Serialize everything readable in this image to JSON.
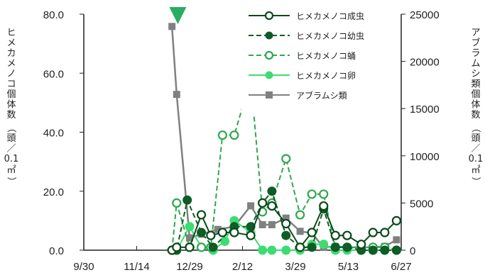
{
  "chart_data": {
    "type": "line",
    "x_ticks": [
      "9/30",
      "11/14",
      "12/29",
      "2/12",
      "3/29",
      "5/13",
      "6/27"
    ],
    "y_left": {
      "label": [
        "ヒメカメノコ個体数",
        "（頭／",
        "0.1",
        "㎡",
        "）"
      ],
      "ticks": [
        "0.0",
        "20.0",
        "40.0",
        "60.0",
        "80.0"
      ],
      "range": [
        0,
        80
      ]
    },
    "y_right": {
      "label": [
        "アブラムシ類個体数",
        "（頭／",
        "0.1",
        "㎡",
        "）"
      ],
      "ticks": [
        "0",
        "5000",
        "10000",
        "15000",
        "20000",
        "25000"
      ],
      "range": [
        0,
        25000
      ]
    },
    "x_range_days_from_9_30": [
      0,
      270
    ],
    "series": [
      {
        "name": "ヒメカメノコ成虫",
        "axis": "left",
        "color": "#0b4a1a",
        "style": "solid",
        "marker": "hollow-circle",
        "points": [
          [
            75,
            0.0
          ],
          [
            79,
            1.0
          ],
          [
            90,
            1.0
          ],
          [
            100,
            12.0
          ],
          [
            108,
            5.0
          ],
          [
            118,
            6.0
          ],
          [
            128,
            6.0
          ],
          [
            142,
            5.0
          ],
          [
            152,
            16.0
          ],
          [
            160,
            15.0
          ],
          [
            172,
            9.0
          ],
          [
            184,
            1.0
          ],
          [
            194,
            6.0
          ],
          [
            204,
            15.0
          ],
          [
            214,
            5.0
          ],
          [
            224,
            5.0
          ],
          [
            236,
            2.0
          ],
          [
            246,
            6.0
          ],
          [
            256,
            6.0
          ],
          [
            266,
            10.0
          ]
        ]
      },
      {
        "name": "ヒメカメノコ幼虫",
        "axis": "left",
        "color": "#0e5c26",
        "style": "dashed",
        "marker": "filled-circle",
        "points": [
          [
            75,
            0.0
          ],
          [
            79,
            0.0
          ],
          [
            88,
            17.0
          ],
          [
            100,
            6.0
          ],
          [
            110,
            1.0
          ],
          [
            128,
            8.0
          ],
          [
            142,
            8.0
          ],
          [
            152,
            16.0
          ],
          [
            160,
            20.0
          ],
          [
            172,
            5.0
          ],
          [
            184,
            1.0
          ],
          [
            194,
            1.0
          ],
          [
            204,
            14.0
          ],
          [
            214,
            1.0
          ],
          [
            224,
            1.0
          ],
          [
            236,
            0.0
          ],
          [
            246,
            0.0
          ],
          [
            256,
            0.0
          ],
          [
            266,
            0.0
          ]
        ]
      },
      {
        "name": "ヒメカメノコ蛹",
        "axis": "left",
        "color": "#2fa84f",
        "style": "dashed",
        "marker": "hollow-circle",
        "points": [
          [
            75,
            0.0
          ],
          [
            79,
            16.0
          ],
          [
            90,
            1.0
          ],
          [
            100,
            1.0
          ],
          [
            108,
            1.0
          ],
          [
            118,
            39.0
          ],
          [
            128,
            39.0
          ],
          [
            142,
            58.0
          ],
          [
            152,
            13.0
          ],
          [
            160,
            16.0
          ],
          [
            172,
            31.0
          ],
          [
            184,
            12.0
          ],
          [
            194,
            19.0
          ],
          [
            204,
            19.0
          ],
          [
            214,
            1.0
          ],
          [
            224,
            1.0
          ],
          [
            236,
            1.0
          ],
          [
            246,
            1.0
          ],
          [
            256,
            1.0
          ],
          [
            266,
            0.0
          ]
        ]
      },
      {
        "name": "ヒメカメノコ卵",
        "axis": "left",
        "color": "#3ddc72",
        "style": "solid",
        "marker": "filled-circle",
        "points": [
          [
            75,
            0.0
          ],
          [
            79,
            0.0
          ],
          [
            90,
            8.0
          ],
          [
            100,
            1.0
          ],
          [
            110,
            0.0
          ],
          [
            120,
            3.0
          ],
          [
            128,
            10.0
          ],
          [
            142,
            6.0
          ],
          [
            152,
            0.0
          ],
          [
            160,
            0.0
          ],
          [
            172,
            0.0
          ],
          [
            184,
            0.0
          ],
          [
            194,
            2.0
          ],
          [
            204,
            2.0
          ],
          [
            214,
            0.0
          ],
          [
            224,
            0.0
          ],
          [
            236,
            0.0
          ],
          [
            246,
            0.0
          ],
          [
            256,
            0.0
          ],
          [
            266,
            0.0
          ]
        ]
      },
      {
        "name": "アブラムシ類",
        "axis": "right",
        "color": "#808080",
        "style": "solid",
        "marker": "filled-square",
        "points": [
          [
            75,
            23700
          ],
          [
            79,
            16500
          ],
          [
            90,
            1300
          ],
          [
            100,
            1700
          ],
          [
            114,
            2200
          ],
          [
            128,
            2500
          ],
          [
            142,
            4700
          ],
          [
            152,
            2700
          ],
          [
            160,
            2700
          ],
          [
            172,
            3400
          ],
          [
            184,
            2000
          ],
          [
            194,
            1800
          ],
          [
            204,
            300
          ],
          [
            214,
            400
          ],
          [
            224,
            300
          ],
          [
            236,
            300
          ],
          [
            246,
            300
          ],
          [
            256,
            400
          ],
          [
            266,
            1100
          ]
        ]
      }
    ],
    "marker_triangle": {
      "x": 80,
      "color": "#27ae60"
    },
    "legend_position": "top-right",
    "grid": false
  }
}
